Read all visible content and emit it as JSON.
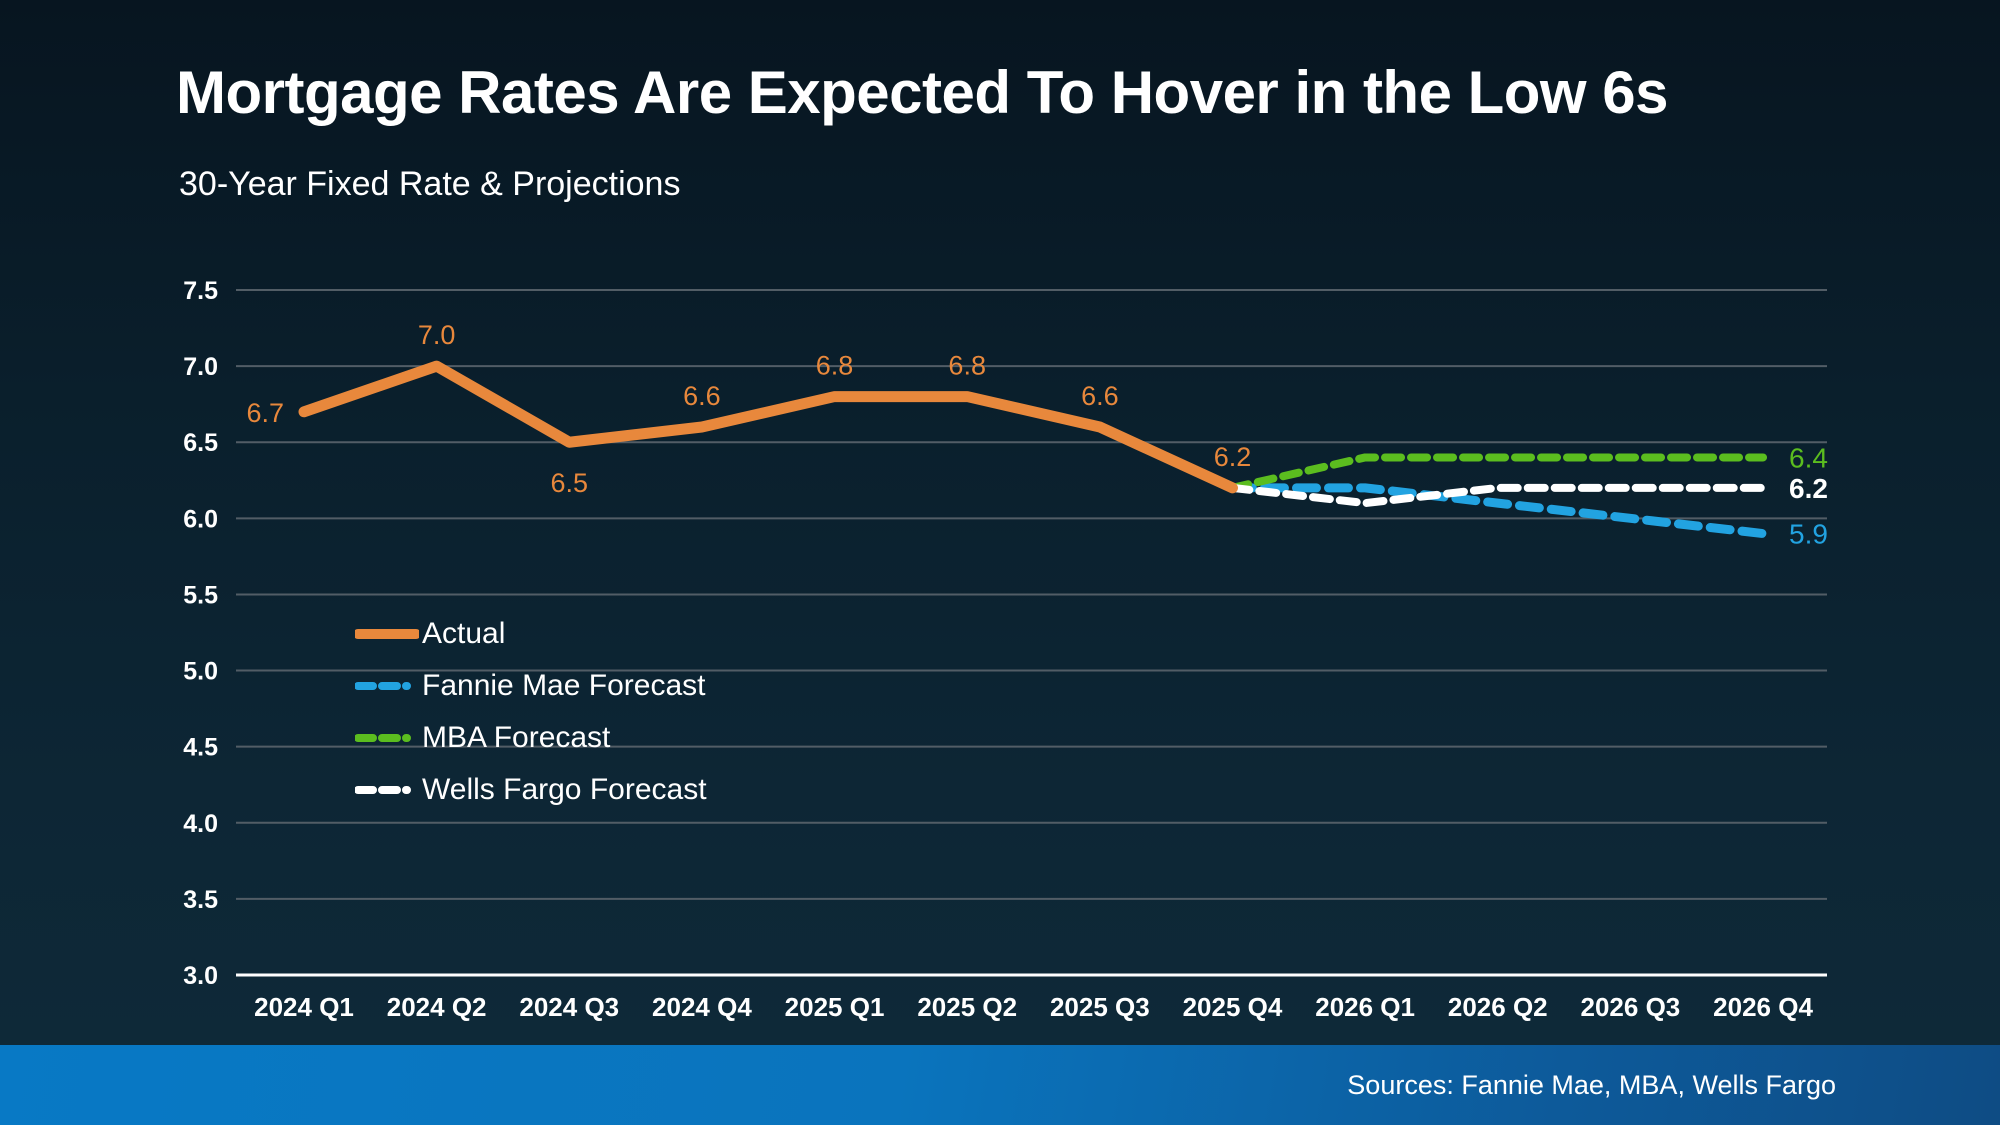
{
  "header": {
    "title": "Mortgage Rates Are Expected To Hover in the Low 6s",
    "subtitle": "30-Year Fixed Rate & Projections"
  },
  "footer": {
    "sources": "Sources: Fannie Mae, MBA, Wells Fargo"
  },
  "colors": {
    "background_top": "#071520",
    "background_bottom": "#0e2a39",
    "gridline": "#525d66",
    "axis_line": "#ffffff",
    "actual_orange": "#e8883c",
    "fannie_blue": "#22a3e1",
    "mba_green": "#5bbd1f",
    "wells_white": "#ffffff",
    "footer_blue_left": "#0879c5",
    "footer_blue_right": "#0e4c84"
  },
  "chart_data": {
    "type": "line",
    "title": "Mortgage Rates Are Expected To Hover in the Low 6s",
    "subtitle": "30-Year Fixed Rate & Projections",
    "categories": [
      "2024 Q1",
      "2024 Q2",
      "2024 Q3",
      "2024 Q4",
      "2025 Q1",
      "2025 Q2",
      "2025 Q3",
      "2025 Q4",
      "2026 Q1",
      "2026 Q2",
      "2026 Q3",
      "2026 Q4"
    ],
    "y_axis": {
      "min": 3.0,
      "max": 7.5,
      "step": 0.5,
      "tick_labels": [
        "7.5",
        "7.0",
        "6.5",
        "6.0",
        "5.5",
        "5.0",
        "4.5",
        "4.0",
        "3.5",
        "3.0"
      ]
    },
    "grid": true,
    "legend_position": "middle-left",
    "series": [
      {
        "name": "Actual",
        "color": "#e8883c",
        "style": "solid",
        "stroke_width": 11,
        "x_start_index": 0,
        "values": [
          6.7,
          7.0,
          6.5,
          6.6,
          6.8,
          6.8,
          6.6,
          6.2
        ],
        "point_labels": [
          "6.7",
          "7.0",
          "6.5",
          "6.6",
          "6.8",
          "6.8",
          "6.6",
          "6.2"
        ],
        "point_label_positions": [
          "left",
          "above",
          "below",
          "above",
          "above",
          "above",
          "above",
          "above"
        ]
      },
      {
        "name": "Fannie Mae Forecast",
        "color": "#22a3e1",
        "style": "dashed",
        "stroke_width": 9,
        "dash": "20 12",
        "x_start_index": 7,
        "values": [
          6.2,
          6.2,
          6.1,
          6.0,
          5.9
        ],
        "end_label": "5.9",
        "end_label_bold": false
      },
      {
        "name": "MBA Forecast",
        "color": "#5bbd1f",
        "style": "dashed",
        "stroke_width": 8,
        "dash": "16 10",
        "x_start_index": 7,
        "values": [
          6.2,
          6.4,
          6.4,
          6.4,
          6.4
        ],
        "end_label": "6.4",
        "end_label_bold": false
      },
      {
        "name": "Wells Fargo Forecast",
        "color": "#ffffff",
        "style": "dashed",
        "stroke_width": 8,
        "dash": "17 10",
        "x_start_index": 7,
        "values": [
          6.2,
          6.1,
          6.2,
          6.2,
          6.2
        ],
        "end_label": "6.2",
        "end_label_bold": true
      }
    ],
    "legend": [
      "Actual",
      "Fannie Mae Forecast",
      "MBA Forecast",
      "Wells Fargo Forecast"
    ]
  }
}
